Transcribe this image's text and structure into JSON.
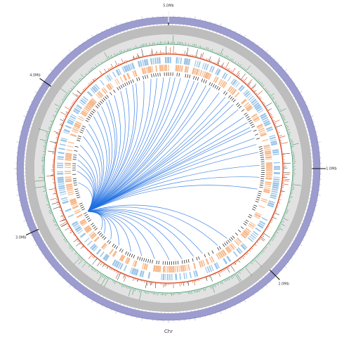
{
  "diagram": {
    "type": "circos-genome-plot",
    "axis_label": "Chr",
    "scale_labels": [
      "1.0Mb",
      "2.0Mb",
      "3.0Mb",
      "4.0Mb",
      "5.0Mb"
    ],
    "tracks": [
      {
        "name": "chromosome-ring",
        "color": "#9c9ccf"
      },
      {
        "name": "outer-gray-band",
        "color": "#bdbdbd"
      },
      {
        "name": "inner-gray-band",
        "color": "#e2e2e2"
      },
      {
        "name": "coverage-histogram",
        "color": "#2e8b57"
      },
      {
        "name": "snp-histogram",
        "color": "#d4471b"
      },
      {
        "name": "dark-ticks",
        "color": "#1a1a1a"
      },
      {
        "name": "blue-genes",
        "color": "#9cc6e8"
      },
      {
        "name": "orange-genes",
        "color": "#f7b88a"
      }
    ],
    "link_color": "#1f6fe0",
    "link_hub": "source locus at lower-left, links fan out across the circle"
  }
}
